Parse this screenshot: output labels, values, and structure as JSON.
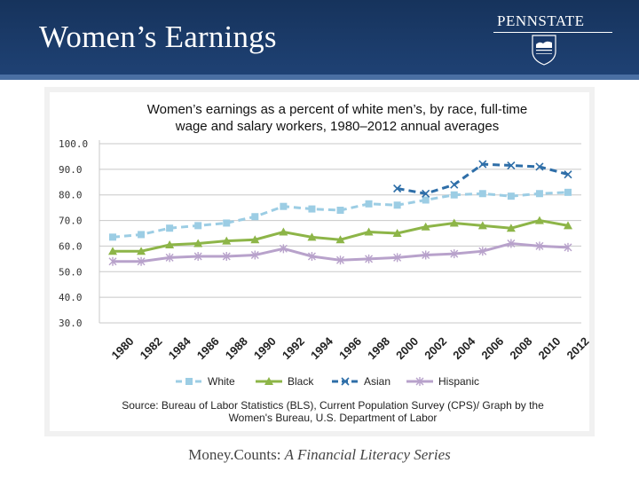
{
  "slide": {
    "title": "Women’s Earnings",
    "logo_text": "PENNSTATE",
    "footer_plain": "Money.Counts: ",
    "footer_italic": "A Financial Literacy Series"
  },
  "colors": {
    "header_bg": "#1f4275",
    "White": "#9ccde4",
    "Black": "#8db548",
    "Asian": "#2e6ea8",
    "Hispanic": "#b8a2cb"
  },
  "chart_data": {
    "type": "line",
    "title_lines": [
      "Women’s earnings as a percent of white men’s, by race, full-time",
      "wage and salary workers, 1980–2012 annual averages"
    ],
    "x": [
      "1980",
      "1982",
      "1984",
      "1986",
      "1988",
      "1990",
      "1992",
      "1994",
      "1996",
      "1998",
      "2000",
      "2002",
      "2004",
      "2006",
      "2008",
      "2010",
      "2012"
    ],
    "y_ticks": [
      "100.0",
      "90.0",
      "80.0",
      "70.0",
      "60.0",
      "50.0",
      "40.0",
      "30.0"
    ],
    "ylim": [
      30,
      100
    ],
    "grid": true,
    "legend_position": "bottom",
    "series": [
      {
        "name": "White",
        "marker": "square",
        "dash": true,
        "values": [
          63.5,
          64.5,
          67,
          68,
          69,
          71.5,
          75.5,
          74.5,
          74,
          76.5,
          76,
          78,
          80,
          80.5,
          79.5,
          80.5,
          81
        ]
      },
      {
        "name": "Black",
        "marker": "triangle",
        "dash": false,
        "values": [
          58,
          58,
          60.5,
          61,
          62,
          62.5,
          65.5,
          63.5,
          62.5,
          65.5,
          65,
          67.5,
          69,
          68,
          67,
          70,
          68
        ]
      },
      {
        "name": "Asian",
        "marker": "x",
        "dash": true,
        "values": [
          null,
          null,
          null,
          null,
          null,
          null,
          null,
          null,
          null,
          null,
          82.5,
          80.5,
          84,
          92,
          91.5,
          91,
          88
        ]
      },
      {
        "name": "Hispanic",
        "marker": "star",
        "dash": false,
        "values": [
          54,
          54,
          55.5,
          56,
          56,
          56.5,
          59,
          56,
          54.5,
          55,
          55.5,
          56.5,
          57,
          58,
          61,
          60,
          59.5
        ]
      }
    ],
    "source_lines": [
      "Source: Bureau of Labor Statistics (BLS), Current Population Survey (CPS)/ Graph by the",
      "Women's Bureau, U.S. Department of Labor"
    ]
  }
}
